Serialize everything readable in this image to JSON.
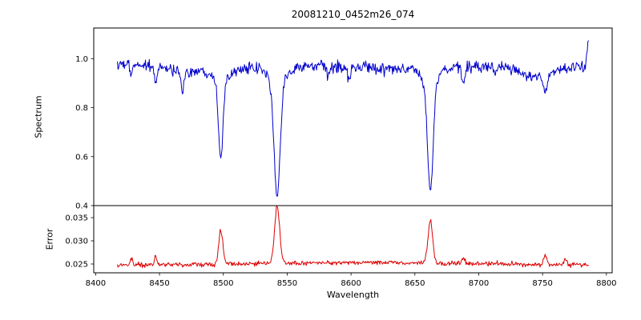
{
  "figure": {
    "title": "20081210_0452m26_074",
    "xlabel": "Wavelength",
    "background_color": "#ffffff",
    "axis_color": "#000000"
  },
  "chart_data": [
    {
      "type": "line",
      "name": "spectrum",
      "ylabel": "Spectrum",
      "line_color": "#0000cc",
      "xlim": [
        8398.5,
        8804.5
      ],
      "ylim": [
        0.4,
        1.125
      ],
      "xticks": [
        8400,
        8450,
        8500,
        8550,
        8600,
        8650,
        8700,
        8750,
        8800
      ],
      "xticklabels": [
        "8400",
        "8450",
        "8500",
        "8550",
        "8600",
        "8650",
        "8700",
        "8750",
        "8800"
      ],
      "yticks": [
        0.4,
        0.6,
        0.8,
        1.0
      ],
      "yticklabels": [
        "0.4",
        "0.6",
        "0.8",
        "1.0"
      ],
      "x_start": 8417,
      "x_end": 8786,
      "x_step": 0.5,
      "continuum": 0.965,
      "noise_std": 0.012,
      "absorption_lines": [
        {
          "center": 8428,
          "depth": 0.05,
          "sigma": 0.9
        },
        {
          "center": 8447,
          "depth": 0.08,
          "sigma": 1.0
        },
        {
          "center": 8468,
          "depth": 0.09,
          "sigma": 1.2
        },
        {
          "center": 8498.0,
          "depth": 0.31,
          "sigma": 1.8
        },
        {
          "center": 8542.1,
          "depth": 0.46,
          "sigma": 2.4
        },
        {
          "center": 8582,
          "depth": 0.04,
          "sigma": 1.0
        },
        {
          "center": 8598,
          "depth": 0.05,
          "sigma": 1.1
        },
        {
          "center": 8662.1,
          "depth": 0.435,
          "sigma": 2.2
        },
        {
          "center": 8688,
          "depth": 0.06,
          "sigma": 1.3
        },
        {
          "center": 8713,
          "depth": 0.04,
          "sigma": 1.0
        },
        {
          "center": 8752,
          "depth": 0.07,
          "sigma": 1.4
        }
      ],
      "line_wings": [
        {
          "center": 8498.0,
          "depth": 0.045,
          "sigma": 5.0
        },
        {
          "center": 8542.1,
          "depth": 0.06,
          "sigma": 6.0
        },
        {
          "center": 8662.1,
          "depth": 0.06,
          "sigma": 5.5
        }
      ],
      "broad_features": [
        {
          "center": 8470,
          "depth": 0.02,
          "sigma": 16
        },
        {
          "center": 8743,
          "depth": 0.045,
          "sigma": 14
        }
      ],
      "edge_spike": {
        "center": 8786,
        "height": 0.1,
        "sigma": 1.2
      }
    },
    {
      "type": "line",
      "name": "error",
      "ylabel": "Error",
      "line_color": "#dd0000",
      "ylim": [
        0.0231,
        0.0376
      ],
      "yticks": [
        0.025,
        0.03,
        0.035
      ],
      "yticklabels": [
        "0.025",
        "0.030",
        "0.035"
      ],
      "baseline": 0.0247,
      "noise_std": 0.00025,
      "broad_bump": {
        "center": 8610,
        "height": 0.0006,
        "sigma": 90
      },
      "peaks": [
        {
          "center": 8428,
          "height": 0.0015,
          "sigma": 0.8
        },
        {
          "center": 8447,
          "height": 0.0022,
          "sigma": 0.9
        },
        {
          "center": 8498.0,
          "height": 0.0072,
          "sigma": 1.6
        },
        {
          "center": 8542.1,
          "height": 0.0122,
          "sigma": 2.0
        },
        {
          "center": 8662.1,
          "height": 0.0093,
          "sigma": 1.8
        },
        {
          "center": 8688,
          "height": 0.0012,
          "sigma": 1.0
        },
        {
          "center": 8752,
          "height": 0.002,
          "sigma": 1.2
        },
        {
          "center": 8768,
          "height": 0.0013,
          "sigma": 1.0
        }
      ]
    }
  ]
}
